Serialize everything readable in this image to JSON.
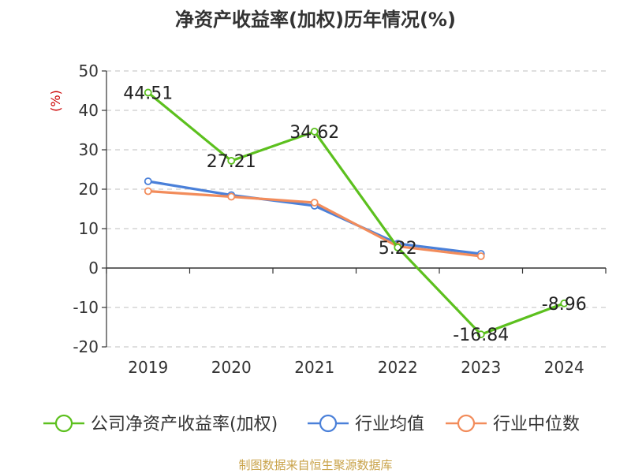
{
  "chart_data": {
    "type": "line",
    "title": "净资产收益率(加权)历年情况(%)",
    "ylabel": "(%)",
    "xlabel": "",
    "categories": [
      "2019",
      "2020",
      "2021",
      "2022",
      "2023",
      "2024"
    ],
    "ylim": [
      -20,
      50
    ],
    "yticks": [
      50,
      40,
      30,
      20,
      10,
      0,
      -10,
      -20
    ],
    "grid": true,
    "legend_position": "bottom",
    "series": [
      {
        "name": "公司净资产收益率(加权)",
        "color": "#5cc01e",
        "values": [
          44.51,
          27.21,
          34.62,
          5.22,
          -16.84,
          -8.96
        ],
        "labels": [
          "44.51",
          "27.21",
          "34.62",
          "5.22",
          "-16.84",
          "-8.96"
        ]
      },
      {
        "name": "行业均值",
        "color": "#4a80d9",
        "values": [
          22.0,
          18.5,
          15.8,
          6.2,
          3.6,
          null
        ]
      },
      {
        "name": "行业中位数",
        "color": "#f28c5b",
        "values": [
          19.5,
          18.1,
          16.6,
          5.5,
          3.0,
          null
        ]
      }
    ],
    "source": "制图数据来自恒生聚源数据库"
  }
}
